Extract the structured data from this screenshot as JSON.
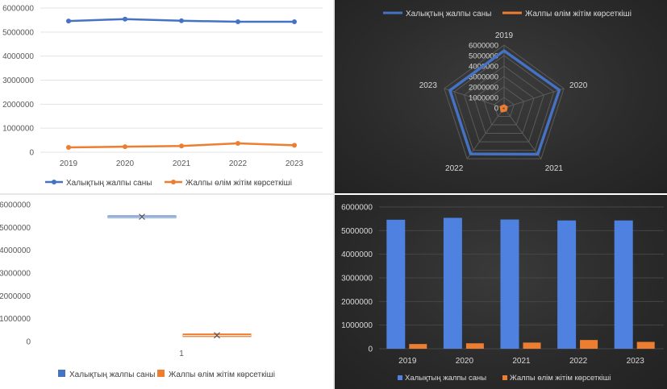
{
  "colors": {
    "population": "#4472C4",
    "mortality": "#ED7D31",
    "population_bright": "#4F81E0"
  },
  "legend": {
    "population": "Халықтың жалпы саны",
    "mortality": "Жалпы өлім жітім көрсеткіші"
  },
  "chart_data": [
    {
      "type": "line",
      "title": "",
      "categories": [
        "2019",
        "2020",
        "2021",
        "2022",
        "2023"
      ],
      "series": [
        {
          "name": "Халықтың жалпы саны",
          "values": [
            5460000,
            5540000,
            5470000,
            5430000,
            5430000
          ]
        },
        {
          "name": "Жалпы өлім жітім көрсеткіші",
          "values": [
            200000,
            230000,
            260000,
            370000,
            290000
          ]
        }
      ],
      "ylim": [
        0,
        6000000
      ],
      "yticks": [
        "0",
        "1000000",
        "2000000",
        "3000000",
        "4000000",
        "5000000",
        "6000000"
      ],
      "grid": true,
      "legend_position": "bottom"
    },
    {
      "type": "radar",
      "title": "",
      "categories": [
        "2019",
        "2020",
        "2021",
        "2022",
        "2023"
      ],
      "series": [
        {
          "name": "Халықтың жалпы саны",
          "values": [
            5460000,
            5540000,
            5470000,
            5430000,
            5430000
          ]
        },
        {
          "name": "Жалпы өлім жітім көрсеткіші",
          "values": [
            200000,
            230000,
            260000,
            370000,
            290000
          ]
        }
      ],
      "rlim": [
        0,
        6000000
      ],
      "rticks": [
        "0",
        "1000000",
        "2000000",
        "3000000",
        "4000000",
        "5000000",
        "6000000"
      ],
      "legend_position": "top"
    },
    {
      "type": "box",
      "title": "",
      "categories": [
        "1"
      ],
      "series": [
        {
          "name": "Халықтың жалпы саны",
          "min": 5430000,
          "q1": 5430000,
          "median": 5460000,
          "q3": 5505000,
          "max": 5540000,
          "mean": 5466000
        },
        {
          "name": "Жалпы өлім жітім көрсеткіші",
          "min": 200000,
          "q1": 215000,
          "median": 260000,
          "q3": 330000,
          "max": 370000,
          "mean": 270000
        }
      ],
      "ylim": [
        0,
        6000000
      ],
      "yticks": [
        "0",
        "1000000",
        "2000000",
        "3000000",
        "4000000",
        "5000000",
        "6000000"
      ],
      "legend_position": "bottom"
    },
    {
      "type": "bar",
      "title": "",
      "categories": [
        "2019",
        "2020",
        "2021",
        "2022",
        "2023"
      ],
      "series": [
        {
          "name": "Халықтың жалпы саны",
          "values": [
            5460000,
            5540000,
            5470000,
            5430000,
            5430000
          ]
        },
        {
          "name": "Жалпы өлім жітім көрсеткіші",
          "values": [
            200000,
            230000,
            260000,
            370000,
            290000
          ]
        }
      ],
      "ylim": [
        0,
        6000000
      ],
      "yticks": [
        "0",
        "1000000",
        "2000000",
        "3000000",
        "4000000",
        "5000000",
        "6000000"
      ],
      "grid": true,
      "legend_position": "bottom"
    }
  ]
}
